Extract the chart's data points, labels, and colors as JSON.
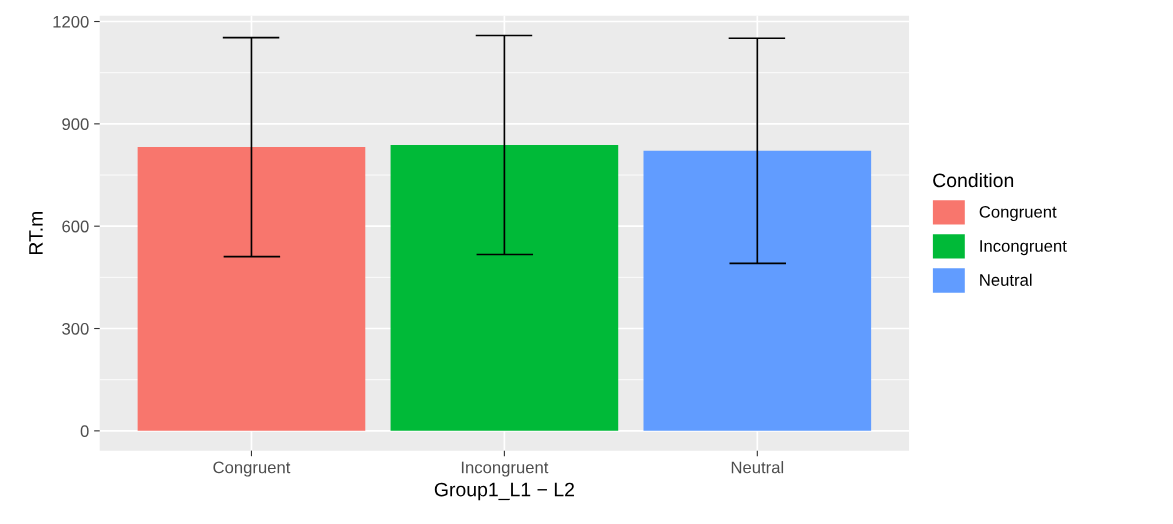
{
  "chart_data": {
    "type": "bar",
    "xlabel": "Group1_L1 − L2",
    "ylabel": "RT.m",
    "legend_title": "Condition",
    "categories": [
      "Congruent",
      "Incongruent",
      "Neutral"
    ],
    "series": [
      {
        "name": "Congruent",
        "color": "#f8766d",
        "values": [
          832,
          null,
          null
        ],
        "errors": [
          321,
          null,
          null
        ]
      },
      {
        "name": "Incongruent",
        "color": "#00ba38",
        "values": [
          null,
          838,
          null
        ],
        "errors": [
          null,
          321,
          null
        ]
      },
      {
        "name": "Neutral",
        "color": "#619cff",
        "values": [
          null,
          null,
          821
        ],
        "errors": [
          null,
          null,
          330
        ]
      }
    ],
    "ylim": [
      -58,
      1217
    ],
    "yticks": [
      0,
      300,
      600,
      900,
      1200
    ],
    "grid": true,
    "legend": "right"
  }
}
